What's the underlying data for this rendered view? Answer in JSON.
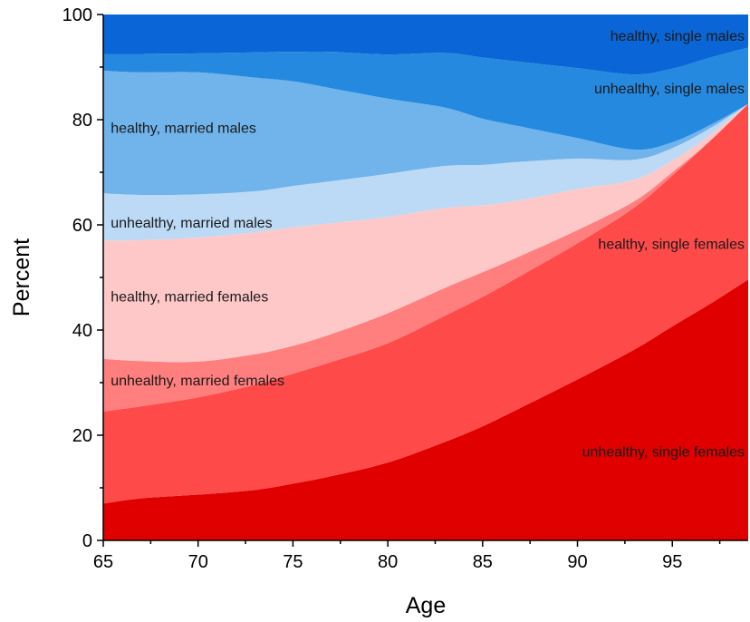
{
  "chart_data": {
    "type": "area",
    "stacked": true,
    "xlabel": "Age",
    "ylabel": "Percent",
    "xlim": [
      65,
      99
    ],
    "ylim": [
      0,
      100
    ],
    "x_ticks": [
      65,
      70,
      75,
      80,
      85,
      90,
      95
    ],
    "y_ticks": [
      0,
      20,
      40,
      60,
      80,
      100
    ],
    "grid": false,
    "x": [
      65,
      67,
      70,
      73,
      75,
      77,
      80,
      83,
      85,
      87,
      90,
      93,
      95,
      97,
      99
    ],
    "series": [
      {
        "name": "unhealthy, single females",
        "color": "#e00000",
        "label_anchor": "end",
        "label_x": 99,
        "label_y": 17,
        "values": [
          7,
          8,
          8.7,
          9.6,
          10.8,
          12.2,
          14.8,
          18.7,
          21.7,
          25.2,
          30.6,
          36.3,
          40.7,
          45,
          49.6
        ]
      },
      {
        "name": "unhealthy, married females",
        "color": "#ff4a4a",
        "label_anchor": "start",
        "label_x": 65.2,
        "label_y": 30.5,
        "values": [
          17.5,
          17.5,
          18.5,
          20,
          20.9,
          21.7,
          22.7,
          24,
          24.6,
          25.1,
          25.9,
          27,
          28.7,
          31,
          33.4
        ]
      },
      {
        "name": "healthy, single females",
        "color": "#ff7f7f",
        "label_anchor": "end",
        "label_x": 99,
        "label_y": 56.5,
        "values": [
          10,
          8.6,
          6.8,
          5.8,
          5.3,
          5.3,
          5.7,
          5.3,
          4.7,
          3.8,
          2.5,
          1.2,
          0.6,
          0,
          0
        ]
      },
      {
        "name": "healthy, married females",
        "color": "#ffc8c8",
        "label_anchor": "start",
        "label_x": 65.2,
        "label_y": 46.5,
        "values": [
          22.5,
          23,
          23.6,
          23.2,
          22.5,
          21.1,
          18.3,
          15.2,
          12.7,
          10.6,
          7.8,
          4.1,
          2.2,
          1.1,
          0
        ]
      },
      {
        "name": "unhealthy, married males",
        "color": "#bcdaf5",
        "label_anchor": "start",
        "label_x": 65.2,
        "label_y": 60.5,
        "values": [
          9,
          8.6,
          8.2,
          7.8,
          7.9,
          8,
          8.2,
          8,
          7.7,
          7.3,
          5.8,
          3.8,
          2.4,
          1.3,
          0
        ]
      },
      {
        "name": "healthy, married males",
        "color": "#70b4eb",
        "label_anchor": "start",
        "label_x": 65.2,
        "label_y": 78.5,
        "values": [
          23.3,
          23.3,
          23.2,
          21.6,
          19.9,
          17.7,
          14.3,
          11.1,
          8.8,
          6.7,
          3.9,
          1.9,
          1.1,
          0.6,
          0
        ]
      },
      {
        "name": "unhealthy, single males",
        "color": "#2689e0",
        "label_anchor": "end",
        "label_x": 99,
        "label_y": 86,
        "values": [
          3.2,
          3.5,
          3.6,
          4.8,
          5.6,
          6.9,
          8.4,
          10.4,
          11.6,
          12.3,
          13.3,
          14.3,
          14,
          12.8,
          10.7
        ]
      },
      {
        "name": "healthy, single males",
        "color": "#0a66d6",
        "label_anchor": "end",
        "label_x": 99,
        "label_y": 96,
        "values": [
          7.5,
          7.5,
          7.4,
          7.2,
          7.1,
          7.1,
          7.6,
          7.3,
          8.2,
          9,
          10.2,
          11.4,
          10.3,
          8.2,
          6.3
        ]
      }
    ]
  }
}
